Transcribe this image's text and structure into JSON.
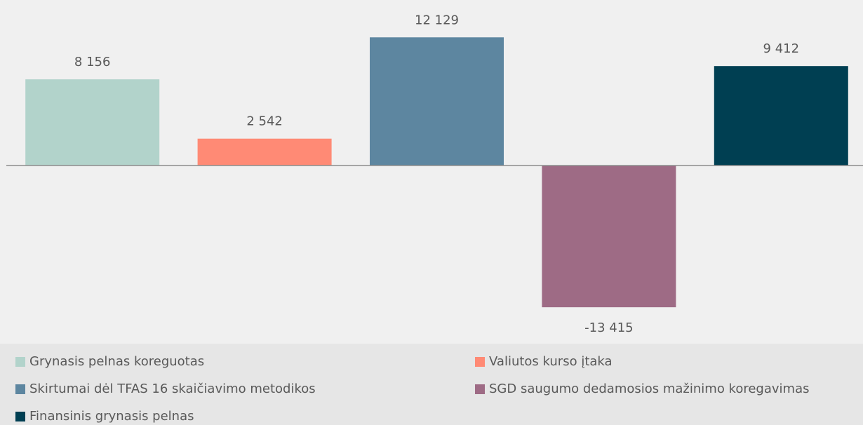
{
  "chart_data": {
    "type": "bar",
    "series": [
      {
        "name": "Grynasis pelnas koreguotas",
        "color": "#b2d3cb",
        "values": [
          8156
        ],
        "value_labels": [
          "8 156"
        ]
      },
      {
        "name": "Valiutos kurso įtaka",
        "color": "#ff8a75",
        "values": [
          2542
        ],
        "value_labels": [
          "2 542"
        ]
      },
      {
        "name": "Skirtumai dėl TFAS 16 skaičiavimo metodikos",
        "color": "#5d86a0",
        "values": [
          12129
        ],
        "value_labels": [
          "12 129"
        ]
      },
      {
        "name": "SGD saugumo dedamosios mažinimo koregavimas",
        "color": "#9e6b85",
        "values": [
          -13415
        ],
        "value_labels": [
          "-13 415"
        ]
      },
      {
        "name": "Finansinis grynasis pelnas",
        "color": "#003f52",
        "values": [
          9412
        ],
        "value_labels": [
          "9 412"
        ]
      }
    ],
    "ylim": [
      -15000,
      15000
    ],
    "legend": "bottom"
  }
}
